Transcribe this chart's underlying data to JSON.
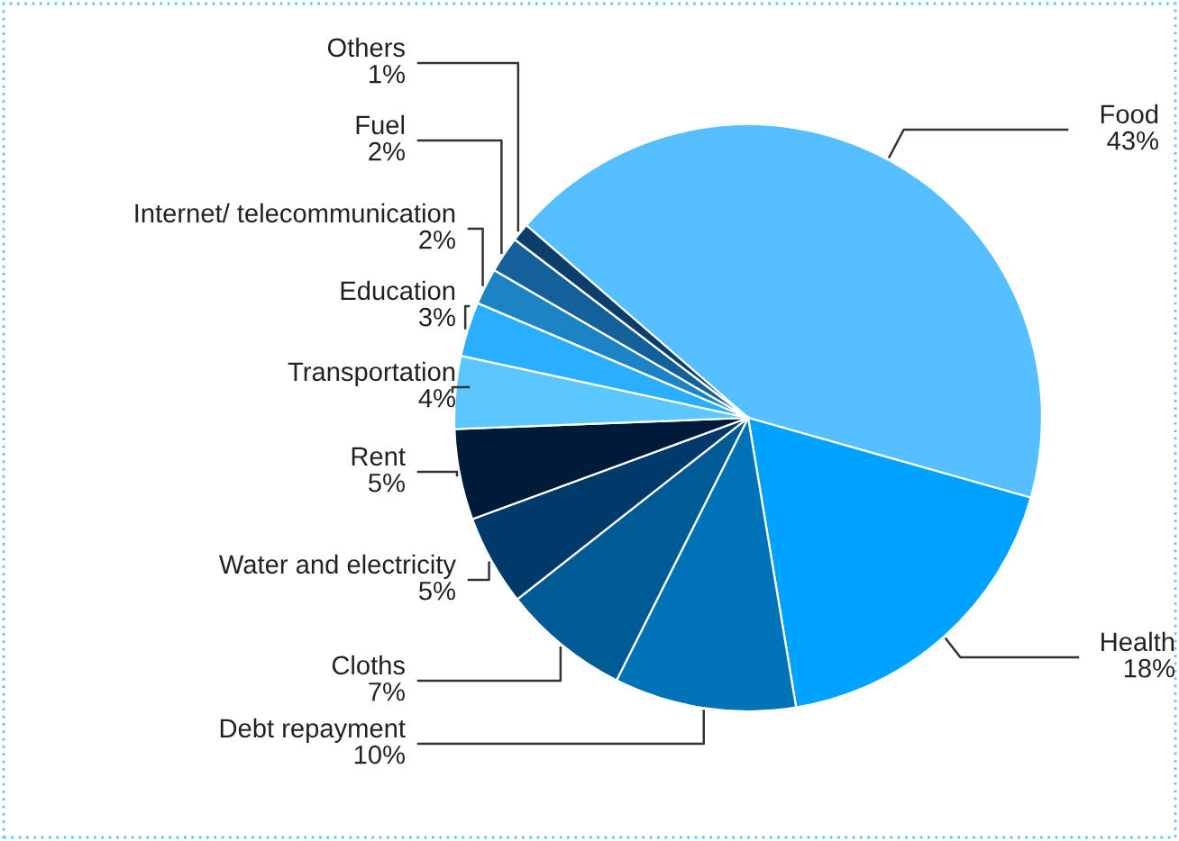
{
  "chart_data": {
    "type": "pie",
    "categories": [
      "Food",
      "Health",
      "Debt repayment",
      "Cloths",
      "Water and electricity",
      "Rent",
      "Transportation",
      "Education",
      "Internet/ telecommunication",
      "Fuel",
      "Others"
    ],
    "values": [
      43,
      18,
      10,
      7,
      5,
      5,
      4,
      3,
      2,
      2,
      1
    ],
    "value_labels": [
      "43%",
      "18%",
      "10%",
      "7%",
      "5%",
      "5%",
      "4%",
      "3%",
      "2%",
      "2%",
      "1%"
    ],
    "colors": [
      "#55bfff",
      "#00a2ff",
      "#0073b8",
      "#005a96",
      "#003a6b",
      "#001a3a",
      "#5cc6ff",
      "#2aaeff",
      "#1c84c4",
      "#14609a",
      "#0c3e6b"
    ],
    "legend": false
  }
}
